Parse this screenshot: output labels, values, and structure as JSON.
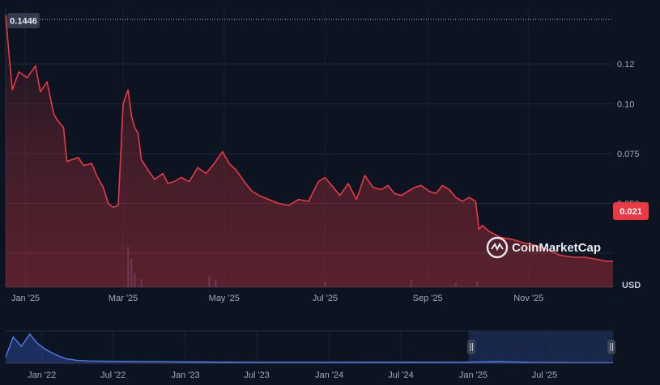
{
  "chart_data": [
    {
      "type": "area",
      "unit_label": "USD",
      "x_ticks": [
        "Jan '25",
        "Mar '25",
        "May '25",
        "Jul '25",
        "Sep '25",
        "Nov '25"
      ],
      "y_ticks": [
        "0.12",
        "0.10",
        "0.075",
        "0.050"
      ],
      "ylim": [
        0.008,
        0.148
      ],
      "y_tick_values": [
        0.12,
        0.1,
        0.075,
        0.05
      ],
      "high_label": "0.1446",
      "high_value": 0.1446,
      "current_label": "0.021",
      "current_value": 0.021,
      "line_color": "#ea3943",
      "grid": true,
      "x_dates": [
        "2024-12-20",
        "2024-12-22",
        "2024-12-24",
        "2024-12-28",
        "2025-01-02",
        "2025-01-07",
        "2025-01-10",
        "2025-01-14",
        "2025-01-18",
        "2025-01-20",
        "2025-01-24",
        "2025-01-26",
        "2025-01-29",
        "2025-02-02",
        "2025-02-05",
        "2025-02-10",
        "2025-02-13",
        "2025-02-17",
        "2025-02-20",
        "2025-02-23",
        "2025-02-26",
        "2025-03-01",
        "2025-03-04",
        "2025-03-06",
        "2025-03-08",
        "2025-03-10",
        "2025-03-12",
        "2025-03-15",
        "2025-03-20",
        "2025-03-25",
        "2025-03-28",
        "2025-04-01",
        "2025-04-05",
        "2025-04-10",
        "2025-04-15",
        "2025-04-20",
        "2025-04-25",
        "2025-04-30",
        "2025-05-04",
        "2025-05-08",
        "2025-05-14",
        "2025-05-18",
        "2025-05-22",
        "2025-05-28",
        "2025-06-03",
        "2025-06-09",
        "2025-06-15",
        "2025-06-21",
        "2025-06-27",
        "2025-07-01",
        "2025-07-05",
        "2025-07-10",
        "2025-07-15",
        "2025-07-20",
        "2025-07-25",
        "2025-07-30",
        "2025-08-04",
        "2025-08-08",
        "2025-08-12",
        "2025-08-16",
        "2025-08-20",
        "2025-08-24",
        "2025-08-28",
        "2025-09-02",
        "2025-09-06",
        "2025-09-10",
        "2025-09-14",
        "2025-09-18",
        "2025-09-22",
        "2025-09-26",
        "2025-09-30",
        "2025-10-02",
        "2025-10-04",
        "2025-10-08",
        "2025-10-15",
        "2025-10-22",
        "2025-10-30",
        "2025-11-05",
        "2025-11-12",
        "2025-11-20",
        "2025-11-28",
        "2025-12-05",
        "2025-12-12",
        "2025-12-18",
        "2025-12-22"
      ],
      "y_values": [
        0.1446,
        0.125,
        0.107,
        0.116,
        0.113,
        0.119,
        0.106,
        0.111,
        0.095,
        0.092,
        0.088,
        0.071,
        0.072,
        0.073,
        0.069,
        0.07,
        0.064,
        0.058,
        0.05,
        0.048,
        0.049,
        0.1,
        0.107,
        0.094,
        0.088,
        0.085,
        0.072,
        0.068,
        0.062,
        0.065,
        0.06,
        0.061,
        0.063,
        0.061,
        0.068,
        0.065,
        0.07,
        0.076,
        0.07,
        0.067,
        0.06,
        0.056,
        0.054,
        0.052,
        0.05,
        0.049,
        0.052,
        0.051,
        0.061,
        0.063,
        0.059,
        0.054,
        0.06,
        0.052,
        0.064,
        0.058,
        0.057,
        0.059,
        0.055,
        0.054,
        0.056,
        0.058,
        0.059,
        0.056,
        0.055,
        0.059,
        0.057,
        0.053,
        0.051,
        0.053,
        0.051,
        0.037,
        0.039,
        0.036,
        0.033,
        0.032,
        0.03,
        0.029,
        0.027,
        0.024,
        0.023,
        0.023,
        0.022,
        0.021,
        0.021
      ],
      "volume_spikes": [
        {
          "date": "2025-03-04",
          "rel": 1.0
        },
        {
          "date": "2025-03-06",
          "rel": 0.7
        },
        {
          "date": "2025-03-08",
          "rel": 0.35
        },
        {
          "date": "2025-03-12",
          "rel": 0.2
        },
        {
          "date": "2025-04-22",
          "rel": 0.28
        },
        {
          "date": "2025-04-26",
          "rel": 0.18
        },
        {
          "date": "2025-07-01",
          "rel": 0.12
        },
        {
          "date": "2025-08-22",
          "rel": 0.18
        },
        {
          "date": "2025-09-18",
          "rel": 0.1
        },
        {
          "date": "2025-10-01",
          "rel": 0.14
        }
      ]
    },
    {
      "type": "area",
      "role": "navigator",
      "x_ticks": [
        "Jan '22",
        "Jul '22",
        "Jan '23",
        "Jul '23",
        "Jan '24",
        "Jul '24",
        "Jan '25",
        "Jul '25"
      ],
      "x_dates": [
        "2021-10-01",
        "2021-10-20",
        "2021-11-10",
        "2021-12-01",
        "2021-12-20",
        "2022-01-10",
        "2022-02-01",
        "2022-03-01",
        "2022-04-01",
        "2022-05-01",
        "2022-07-01",
        "2022-10-01",
        "2023-01-01",
        "2023-07-01",
        "2024-01-01",
        "2024-07-01",
        "2024-12-01",
        "2025-03-05",
        "2025-06-01",
        "2025-09-01",
        "2025-12-22"
      ],
      "values_relative": [
        0.2,
        0.85,
        0.55,
        0.95,
        0.65,
        0.45,
        0.3,
        0.15,
        0.09,
        0.07,
        0.06,
        0.05,
        0.04,
        0.03,
        0.03,
        0.035,
        0.03,
        0.05,
        0.025,
        0.02,
        0.015
      ],
      "selection_range": [
        "2024-12-20",
        "2025-12-22"
      ]
    }
  ],
  "brand": {
    "name": "CoinMarketCap"
  }
}
